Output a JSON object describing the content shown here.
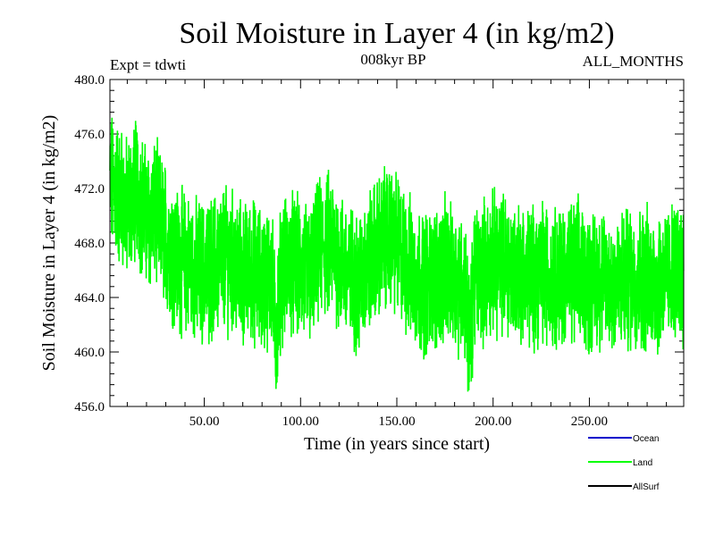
{
  "chart_data": {
    "type": "line",
    "title": "Soil Moisture in Layer 4 (in kg/m2)",
    "subtitle": "008kyr BP",
    "experiment": "Expt = tdwti",
    "period": "ALL_MONTHS",
    "xlabel": "Time (in years since start)",
    "ylabel": "Soil Moisture in Layer 4 (in kg/m2)",
    "xlim": [
      1,
      299
    ],
    "ylim": [
      456.0,
      480.0
    ],
    "xticks": [
      50,
      100,
      150,
      200,
      250
    ],
    "xtick_labels": [
      "50.00",
      "100.00",
      "150.00",
      "200.00",
      "250.00"
    ],
    "yticks": [
      456,
      460,
      464,
      468,
      472,
      476,
      480
    ],
    "ytick_labels": [
      "456.0",
      "460.0",
      "464.0",
      "468.0",
      "472.0",
      "476.0",
      "480.0"
    ],
    "legend": [
      {
        "name": "Ocean",
        "color": "#0000cc"
      },
      {
        "name": "Land",
        "color": "#00ff00"
      },
      {
        "name": "AllSurf",
        "color": "#000000"
      }
    ],
    "series": [
      {
        "name": "Land",
        "color": "#00ff00",
        "x": [
          1,
          5,
          10,
          15,
          20,
          25,
          30,
          35,
          40,
          45,
          50,
          55,
          60,
          65,
          70,
          75,
          80,
          85,
          87,
          90,
          95,
          100,
          105,
          110,
          115,
          120,
          125,
          130,
          135,
          140,
          145,
          150,
          155,
          160,
          165,
          170,
          175,
          180,
          185,
          188,
          190,
          195,
          200,
          205,
          210,
          215,
          220,
          225,
          230,
          235,
          240,
          245,
          250,
          255,
          260,
          265,
          270,
          275,
          280,
          285,
          290,
          295,
          299
        ],
        "values": [
          472.5,
          471.8,
          470.5,
          472.0,
          469.8,
          470.2,
          468.5,
          467.0,
          466.5,
          466.0,
          465.8,
          466.2,
          467.0,
          466.5,
          465.5,
          466.0,
          465.2,
          465.8,
          461.0,
          466.0,
          466.5,
          466.0,
          465.5,
          467.5,
          468.0,
          467.0,
          465.5,
          465.0,
          466.5,
          467.5,
          468.5,
          468.0,
          466.5,
          465.5,
          465.0,
          465.5,
          466.0,
          465.2,
          465.0,
          460.5,
          465.5,
          466.0,
          466.5,
          466.5,
          466.0,
          465.8,
          465.5,
          466.0,
          465.5,
          465.8,
          465.5,
          466.0,
          465.0,
          465.5,
          465.0,
          464.8,
          465.5,
          465.2,
          465.5,
          465.0,
          465.5,
          465.8,
          466.0
        ]
      }
    ]
  }
}
